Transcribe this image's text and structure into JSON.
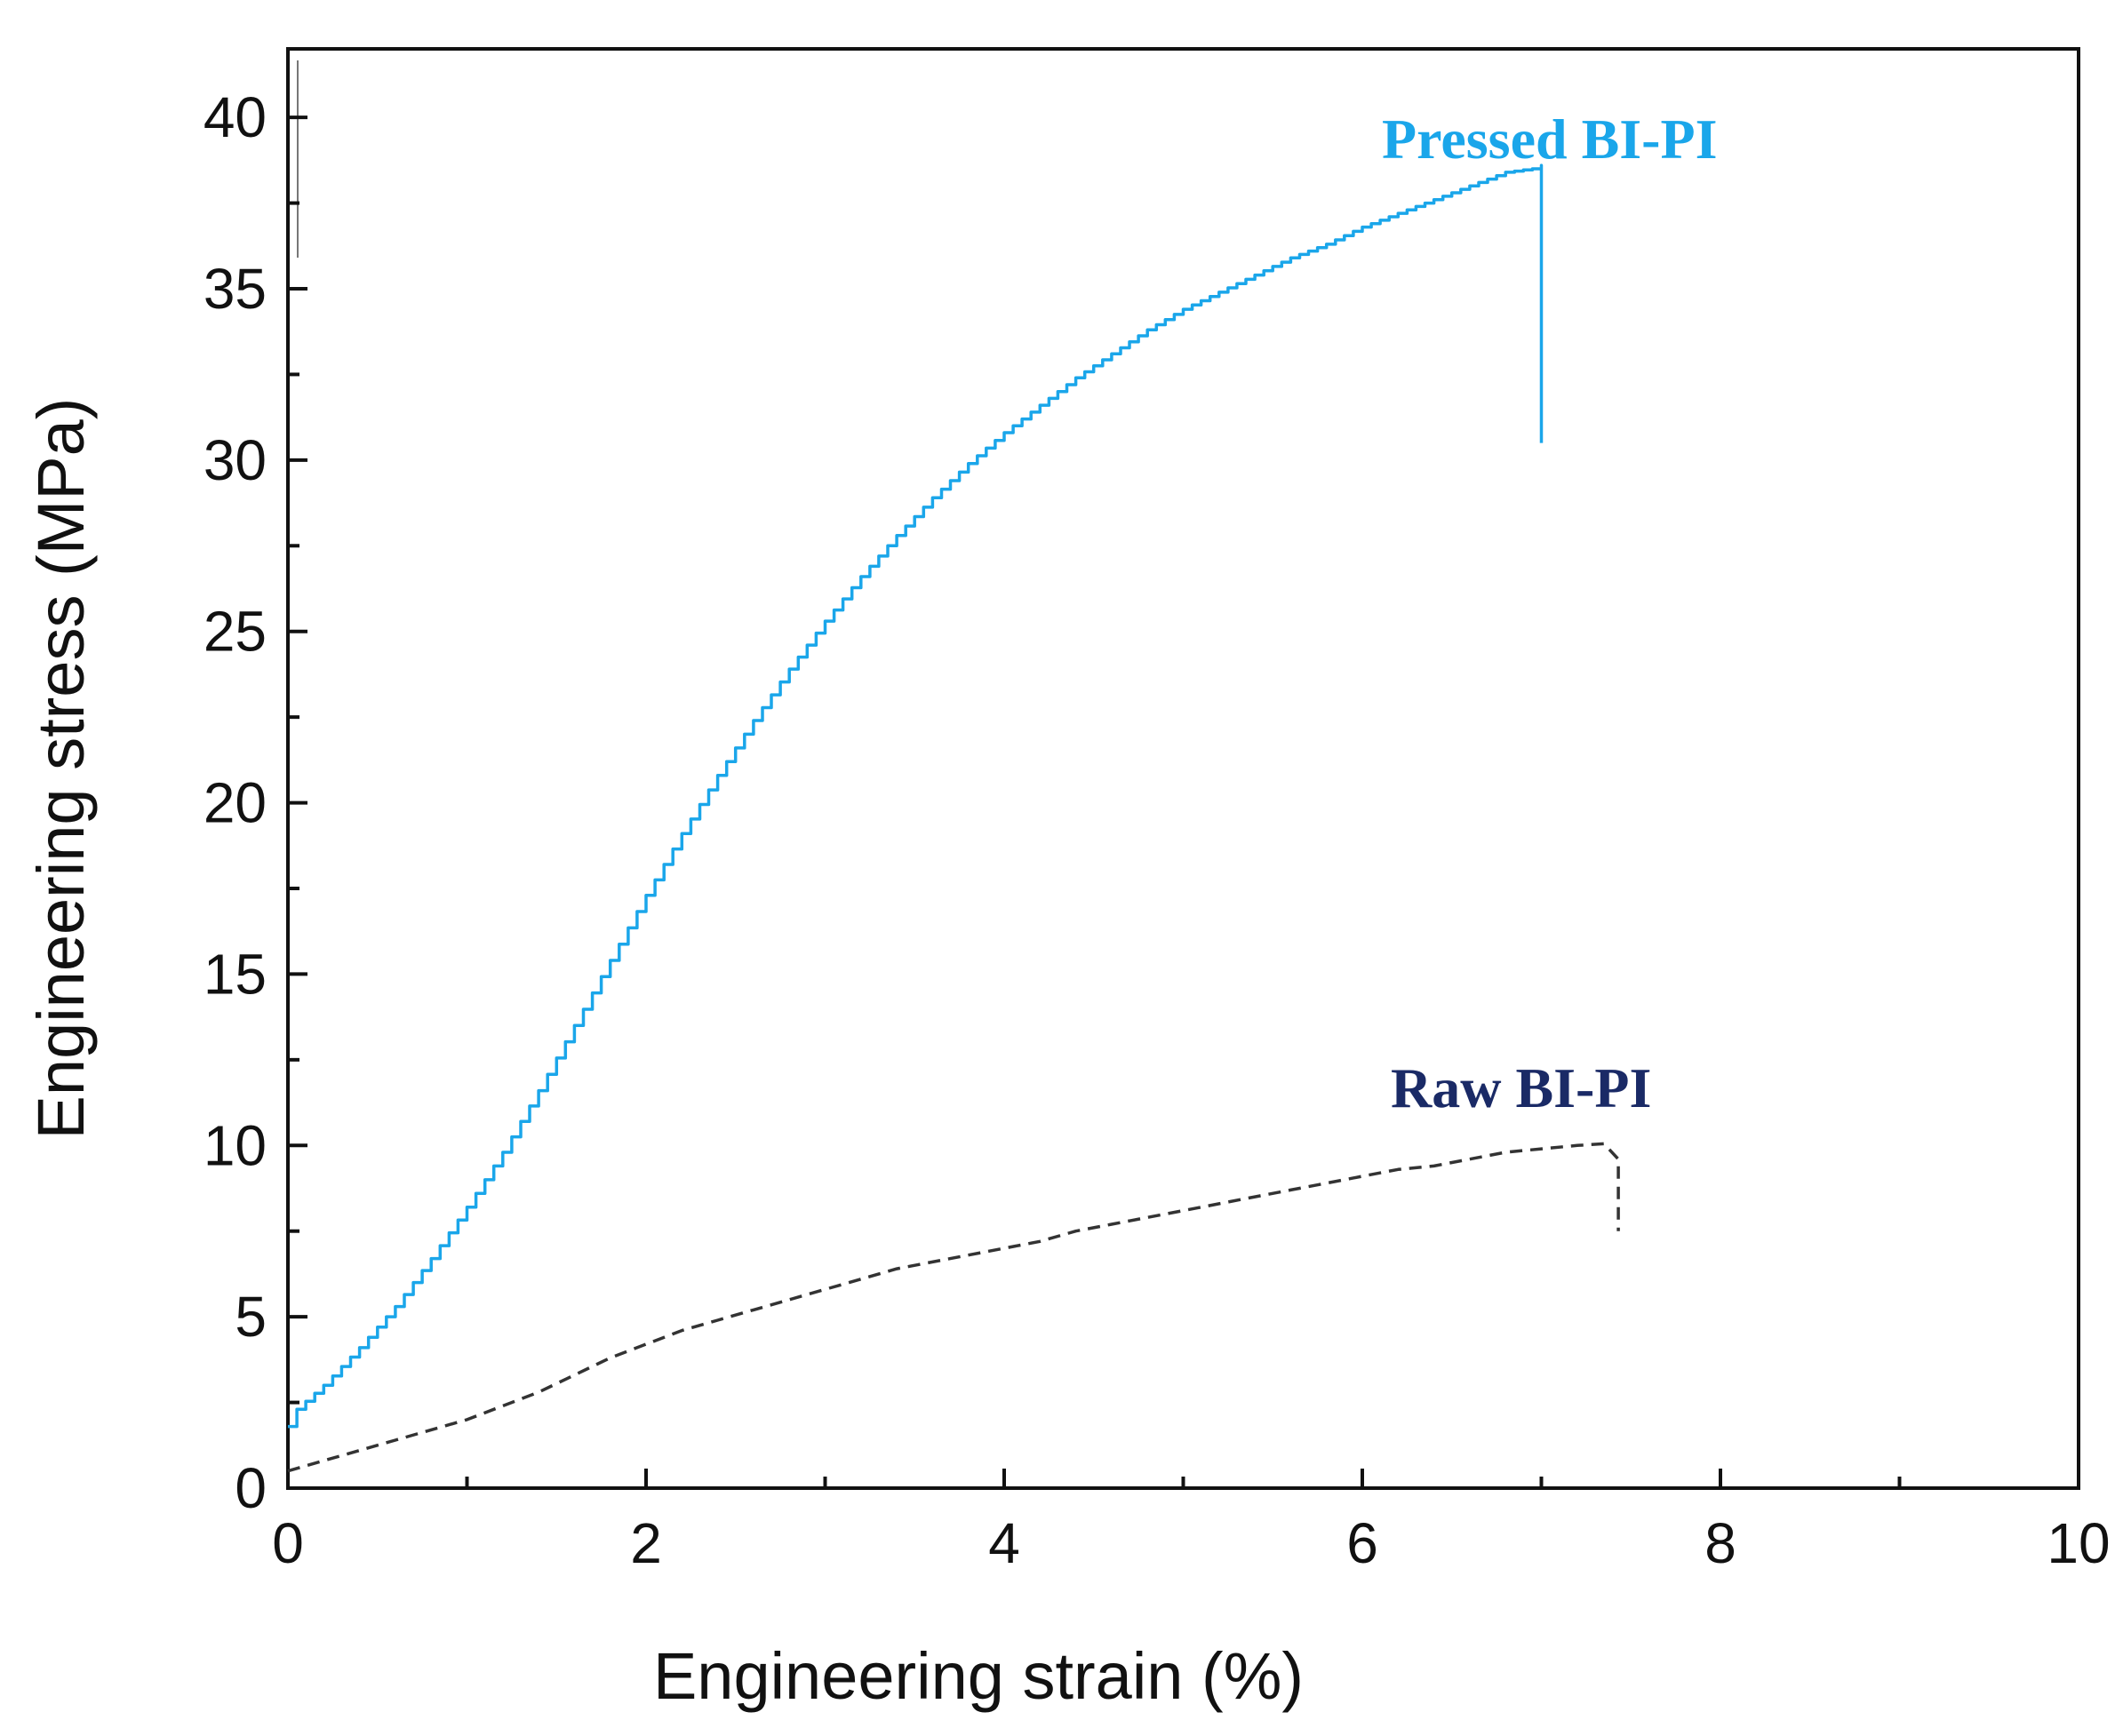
{
  "chart_data": {
    "type": "line",
    "title": "",
    "xlabel": "Engineering strain (%)",
    "ylabel": "Engineering stress (MPa)",
    "xlim": [
      0,
      10
    ],
    "ylim": [
      0,
      42
    ],
    "x_ticks": [
      "0",
      "2",
      "4",
      "6",
      "8",
      "10"
    ],
    "y_ticks": [
      "0",
      "5",
      "10",
      "15",
      "20",
      "25",
      "30",
      "35",
      "40"
    ],
    "grid": false,
    "legend": "none (series labelled directly on plot)",
    "series": [
      {
        "name": "Pressed BI-PI",
        "color": "#1aa6ea",
        "style": "solid stepped line",
        "x": [
          0.0,
          0.05,
          0.2,
          0.4,
          0.6,
          0.8,
          1.0,
          1.2,
          1.4,
          1.6,
          1.8,
          2.0,
          2.2,
          2.4,
          2.6,
          2.8,
          3.0,
          3.2,
          3.4,
          3.6,
          3.8,
          4.0,
          4.2,
          4.4,
          4.6,
          4.8,
          5.0,
          5.2,
          5.4,
          5.6,
          5.8,
          6.0,
          6.2,
          6.4,
          6.6,
          6.8,
          6.95,
          7.0,
          7.0
        ],
        "y": [
          1.8,
          2.3,
          3.0,
          4.1,
          5.3,
          6.7,
          8.2,
          9.8,
          11.6,
          13.5,
          15.4,
          17.3,
          19.1,
          20.8,
          22.4,
          23.9,
          25.3,
          26.6,
          27.8,
          28.9,
          29.9,
          30.8,
          31.6,
          32.4,
          33.1,
          33.8,
          34.4,
          34.9,
          35.4,
          35.9,
          36.3,
          36.8,
          37.2,
          37.6,
          38.0,
          38.4,
          38.5,
          38.6,
          30.5
        ]
      },
      {
        "name": "Raw BI-PI",
        "color": "#333333",
        "style": "dashed",
        "x": [
          0.0,
          0.2,
          0.4,
          0.6,
          0.8,
          1.0,
          1.2,
          1.4,
          1.6,
          1.8,
          2.0,
          2.2,
          2.4,
          2.6,
          2.8,
          3.0,
          3.2,
          3.4,
          3.6,
          3.8,
          4.0,
          4.2,
          4.4,
          4.6,
          4.8,
          5.0,
          5.2,
          5.4,
          5.6,
          5.8,
          6.0,
          6.2,
          6.4,
          6.6,
          6.8,
          7.0,
          7.2,
          7.35,
          7.43,
          7.43
        ],
        "y": [
          0.5,
          0.8,
          1.1,
          1.4,
          1.7,
          2.0,
          2.4,
          2.8,
          3.3,
          3.8,
          4.2,
          4.6,
          4.9,
          5.2,
          5.5,
          5.8,
          6.1,
          6.4,
          6.6,
          6.8,
          7.0,
          7.2,
          7.5,
          7.7,
          7.9,
          8.1,
          8.3,
          8.5,
          8.7,
          8.9,
          9.1,
          9.3,
          9.4,
          9.6,
          9.8,
          9.9,
          10.0,
          10.05,
          9.6,
          7.5
        ]
      }
    ],
    "annotations": [
      {
        "text": "Pressed BI-PI",
        "color": "#1aa6ea"
      },
      {
        "text": "Raw BI-PI",
        "color": "#1a2a66"
      }
    ]
  }
}
